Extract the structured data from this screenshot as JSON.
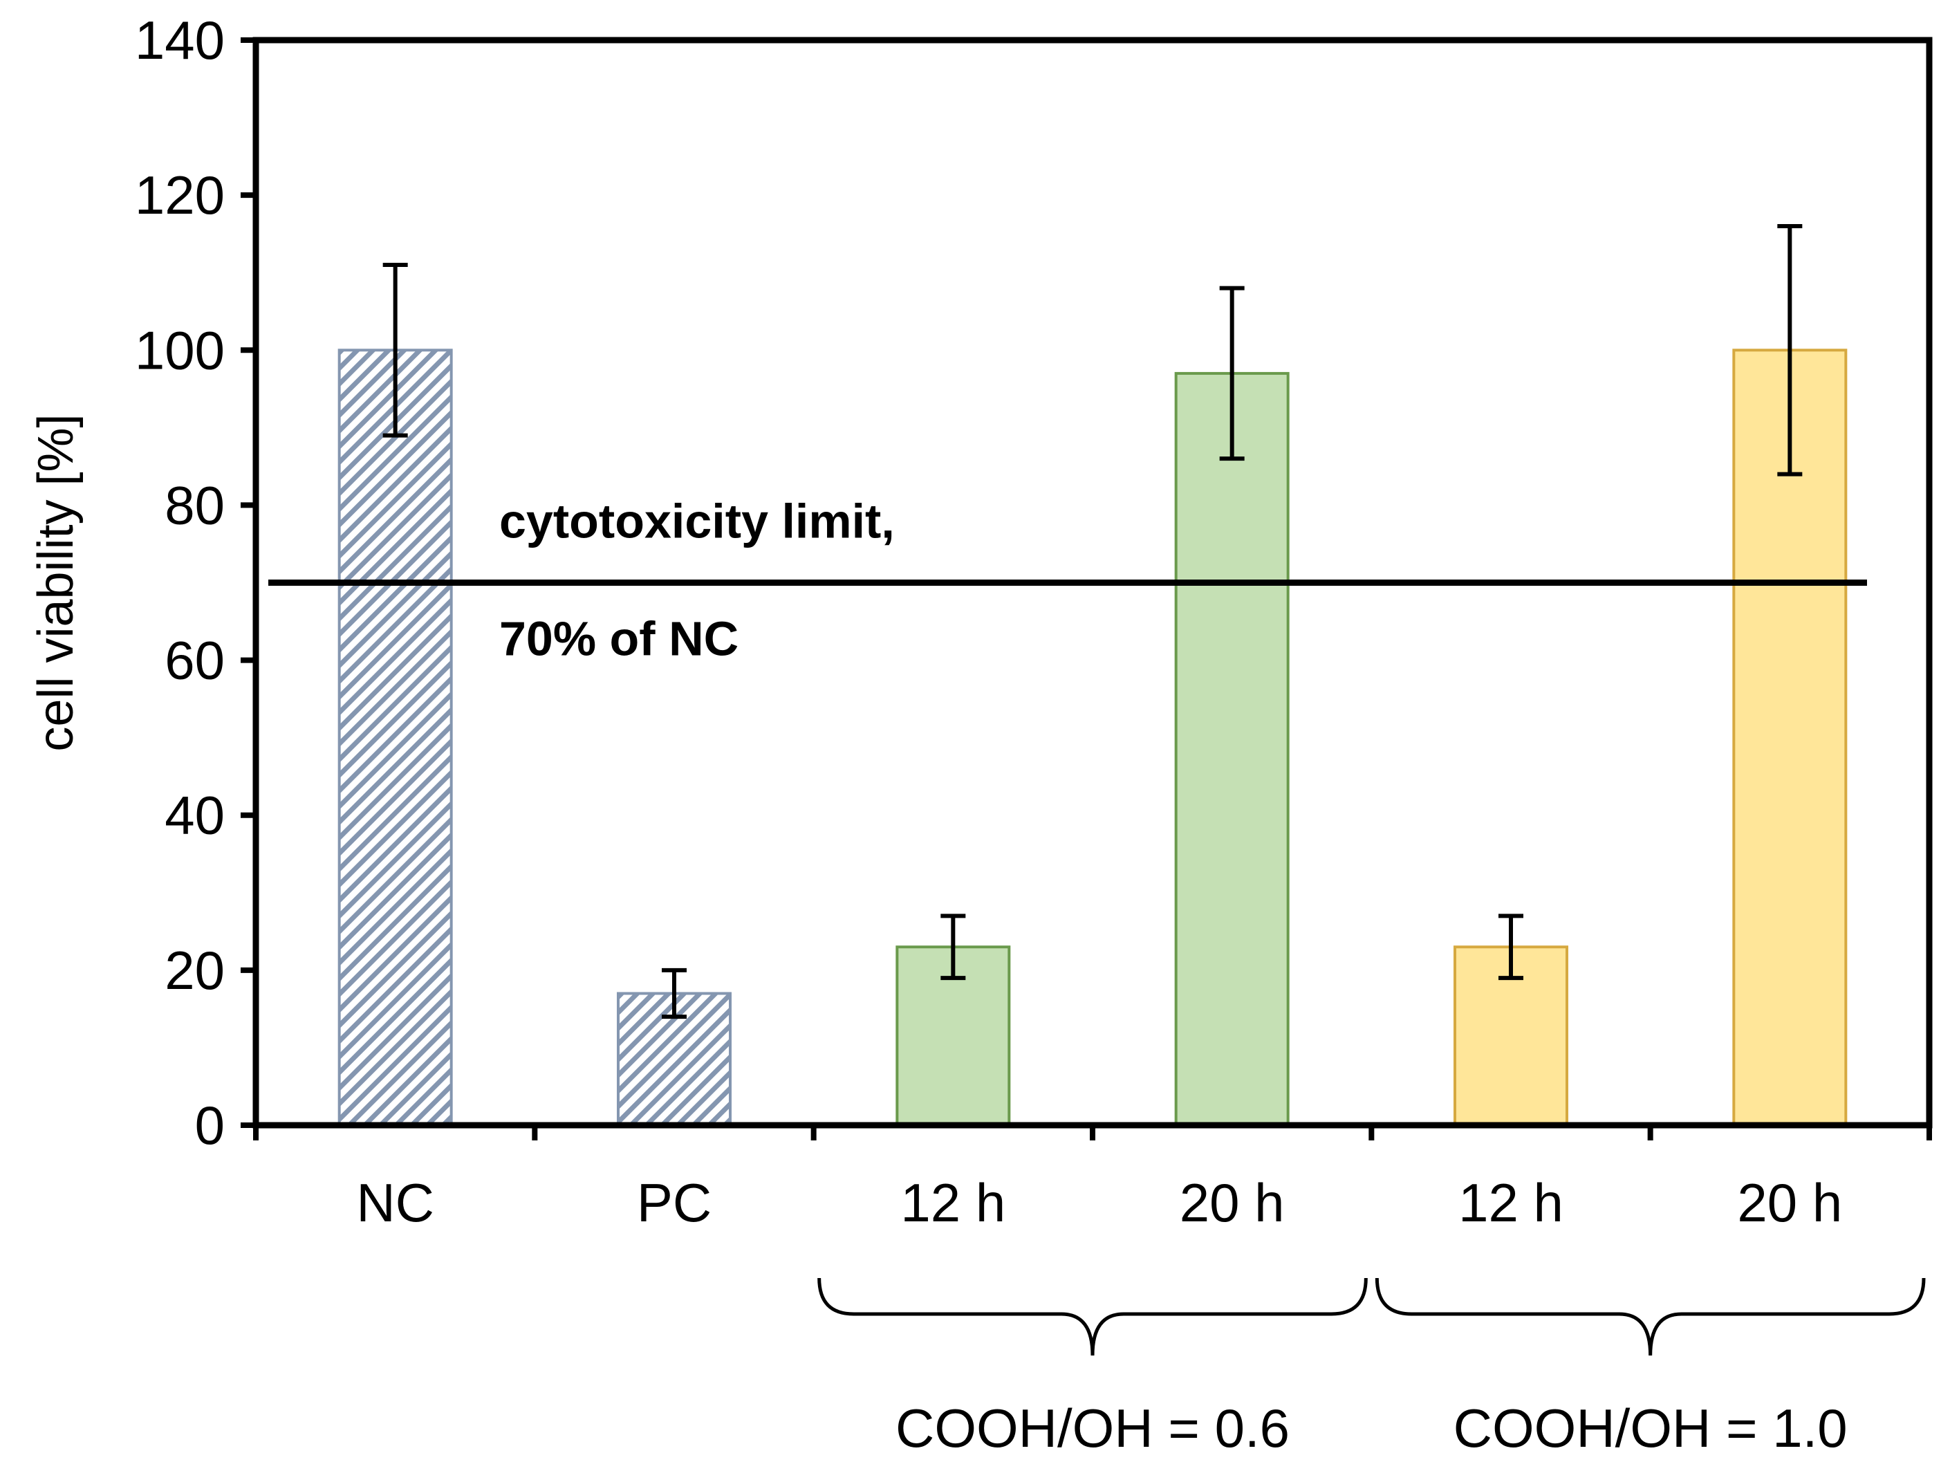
{
  "chart_data": {
    "type": "bar",
    "title": "",
    "xlabel": "",
    "ylabel": "cell viability [%]",
    "ylim": [
      0,
      140
    ],
    "yticks": [
      0,
      20,
      40,
      60,
      80,
      100,
      120,
      140
    ],
    "grid": false,
    "bars": [
      {
        "label": "NC",
        "value": 100,
        "err": 11,
        "fill": "hatch",
        "color": "#8496b0"
      },
      {
        "label": "PC",
        "value": 17,
        "err": 3,
        "fill": "hatch",
        "color": "#8496b0"
      },
      {
        "label": "12 h",
        "value": 23,
        "err": 4,
        "fill": "solid",
        "color": "#c5e0b4",
        "stroke": "#6a9a4c"
      },
      {
        "label": "20 h",
        "value": 97,
        "err": 11,
        "fill": "solid",
        "color": "#c5e0b4",
        "stroke": "#6a9a4c"
      },
      {
        "label": "12 h",
        "value": 23,
        "err": 4,
        "fill": "solid",
        "color": "#ffe699",
        "stroke": "#d6a940"
      },
      {
        "label": "20 h",
        "value": 100,
        "err": 16,
        "fill": "solid",
        "color": "#ffe699",
        "stroke": "#d6a940"
      }
    ],
    "groups": [
      {
        "label": "COOH/OH = 0.6",
        "bars": [
          2,
          3
        ]
      },
      {
        "label": "COOH/OH = 1.0",
        "bars": [
          4,
          5
        ]
      }
    ],
    "reference_line": {
      "value": 70,
      "label_line1": "cytotoxicity limit,",
      "label_line2": "70% of NC"
    }
  }
}
